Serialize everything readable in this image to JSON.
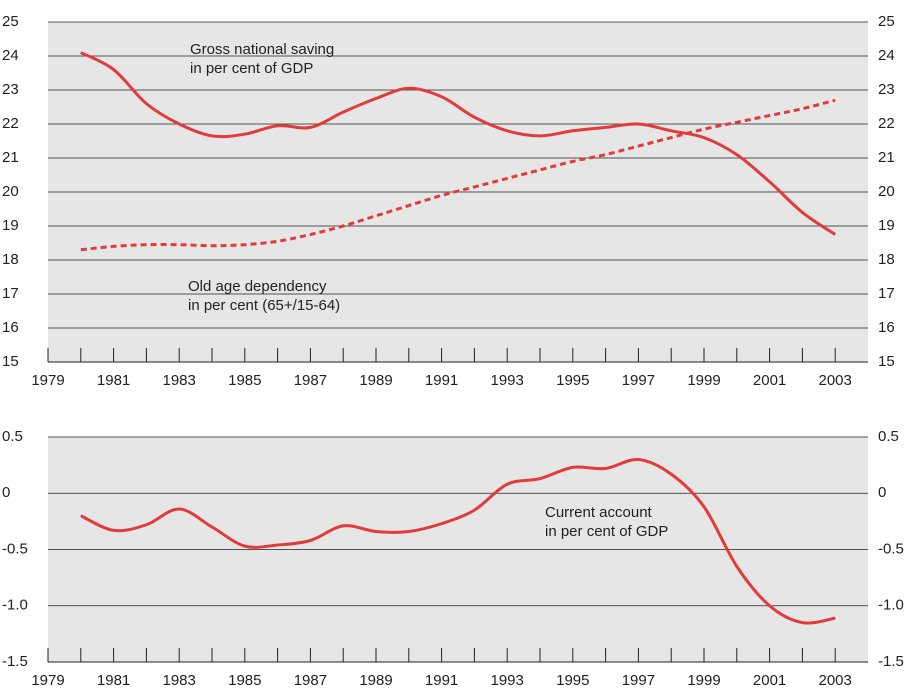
{
  "chart_data": [
    {
      "type": "line",
      "x": [
        1980,
        1981,
        1982,
        1983,
        1984,
        1985,
        1986,
        1987,
        1988,
        1989,
        1990,
        1991,
        1992,
        1993,
        1994,
        1995,
        1996,
        1997,
        1998,
        1999,
        2000,
        2001,
        2002,
        2003
      ],
      "series": [
        {
          "color": "#e23b3b",
          "dash": false,
          "values": [
            24.1,
            23.6,
            22.6,
            22.0,
            21.65,
            21.7,
            21.95,
            21.9,
            22.35,
            22.75,
            23.05,
            22.8,
            22.2,
            21.8,
            21.65,
            21.8,
            21.9,
            22.0,
            21.8,
            21.6,
            21.1,
            20.3,
            19.4,
            18.75
          ]
        },
        {
          "color": "#e23b3b",
          "dash": true,
          "values": [
            18.3,
            18.4,
            18.45,
            18.45,
            18.42,
            18.45,
            18.55,
            18.75,
            19.0,
            19.3,
            19.6,
            19.9,
            20.15,
            20.4,
            20.65,
            20.9,
            21.1,
            21.35,
            21.6,
            21.85,
            22.05,
            22.25,
            22.45,
            22.7
          ]
        }
      ],
      "annotations": [
        [
          "Gross national saving",
          "in per cent of GDP"
        ],
        [
          "Old age dependency",
          "in per cent (65+/15-64)"
        ]
      ],
      "xlim": [
        1979,
        2004
      ],
      "xticks": [
        1979,
        1981,
        1983,
        1985,
        1987,
        1989,
        1991,
        1993,
        1995,
        1997,
        1999,
        2001,
        2003
      ],
      "ylim": [
        15,
        25
      ],
      "yticks": [
        15,
        16,
        17,
        18,
        19,
        20,
        21,
        22,
        23,
        24,
        25
      ],
      "grid": true,
      "background": "#e6e6e6"
    },
    {
      "type": "line",
      "x": [
        1980,
        1981,
        1982,
        1983,
        1984,
        1985,
        1986,
        1987,
        1988,
        1989,
        1990,
        1991,
        1992,
        1993,
        1994,
        1995,
        1996,
        1997,
        1998,
        1999,
        2000,
        2001,
        2002,
        2003
      ],
      "series": [
        {
          "color": "#e23b3b",
          "dash": false,
          "values": [
            -0.2,
            -0.33,
            -0.28,
            -0.14,
            -0.3,
            -0.47,
            -0.46,
            -0.42,
            -0.29,
            -0.34,
            -0.34,
            -0.27,
            -0.15,
            0.08,
            0.13,
            0.23,
            0.22,
            0.3,
            0.17,
            -0.12,
            -0.65,
            -1.0,
            -1.15,
            -1.11
          ]
        }
      ],
      "annotations": [
        [
          "Current account",
          "in per cent of GDP"
        ]
      ],
      "xlim": [
        1979,
        2004
      ],
      "xticks": [
        1979,
        1981,
        1983,
        1985,
        1987,
        1989,
        1991,
        1993,
        1995,
        1997,
        1999,
        2001,
        2003
      ],
      "ylim": [
        -1.5,
        0.5
      ],
      "yticks": [
        -1.5,
        {
          "value": -1.0,
          "label": "-1.0"
        },
        -0.5,
        0,
        0.5
      ],
      "grid": true,
      "background": "#e6e6e6"
    }
  ]
}
